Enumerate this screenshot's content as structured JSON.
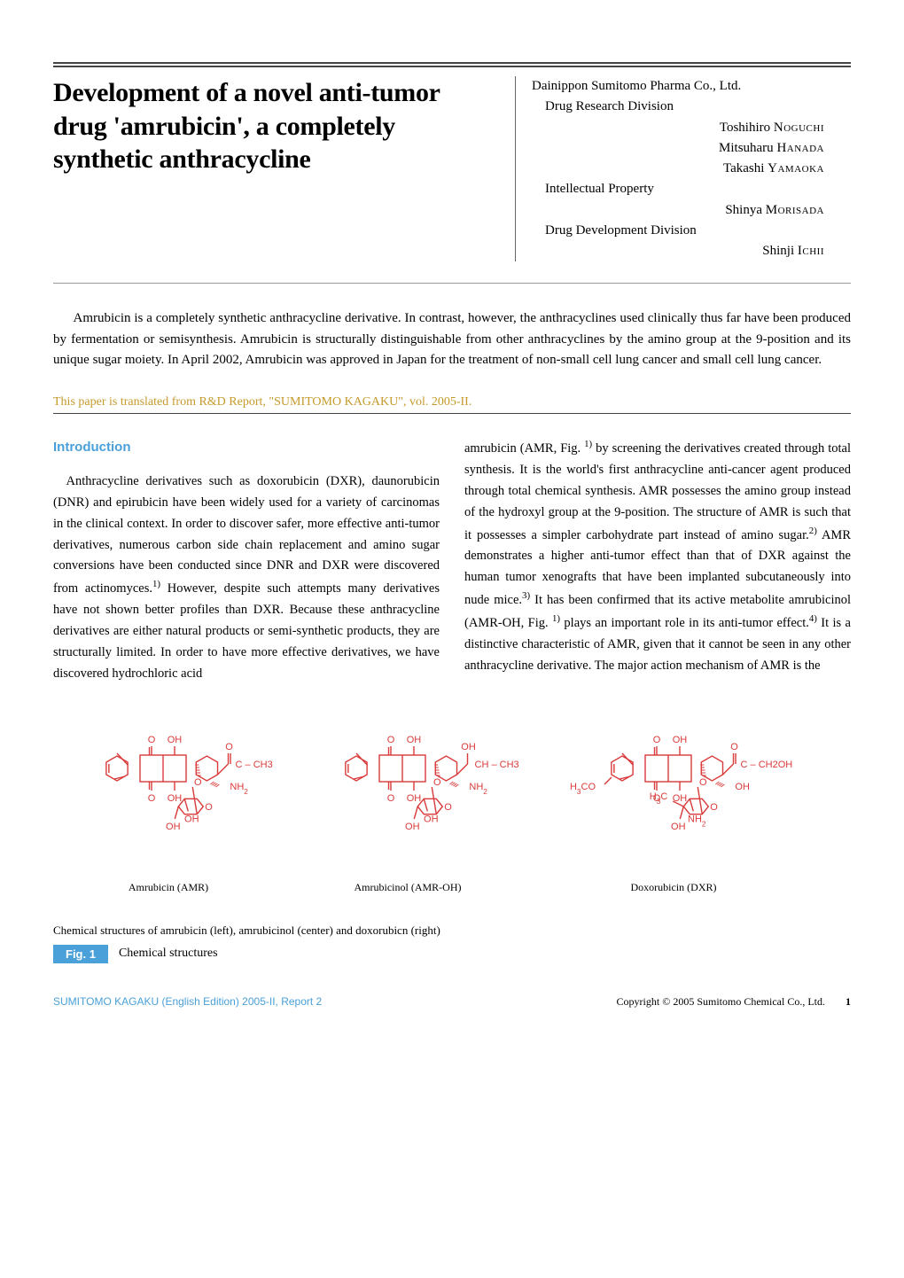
{
  "header": {
    "title": "Development of a novel anti-tumor drug 'amrubicin', a completely synthetic anthracycline",
    "organization": "Dainippon Sumitomo Pharma Co., Ltd.",
    "affiliations": [
      {
        "dept": "Drug Research Division",
        "authors": [
          {
            "given": "Toshihiro",
            "surname": "Noguchi"
          },
          {
            "given": "Mitsuharu",
            "surname": "Hanada"
          },
          {
            "given": "Takashi",
            "surname": "Yamaoka"
          }
        ]
      },
      {
        "dept": "Intellectual Property",
        "authors": [
          {
            "given": "Shinya",
            "surname": "Morisada"
          }
        ]
      },
      {
        "dept": "Drug Development Division",
        "authors": [
          {
            "given": "Shinji",
            "surname": "Ichii"
          }
        ]
      }
    ]
  },
  "abstract": "Amrubicin is a completely synthetic anthracycline derivative.  In contrast, however, the anthracyclines used clinically thus far have been produced by fermentation or semisynthesis. Amrubicin is structurally distinguishable from other anthracyclines by the amino group at the 9-position and its unique sugar moiety.  In April 2002, Amrubicin was approved in Japan for the treatment of non-small cell lung cancer and small cell lung cancer.",
  "translated_note": "This paper is translated from R&D Report, \"SUMITOMO KAGAKU\", vol. 2005-II.",
  "sections": {
    "introduction_heading": "Introduction",
    "col1_para": "Anthracycline derivatives such as doxorubicin (DXR), daunorubicin (DNR) and epirubicin have been widely used for a variety of carcinomas in the clinical context. In order to discover safer, more effective anti-tumor derivatives, numerous carbon side chain replacement and amino sugar conversions have been conducted since DNR and DXR were discovered from actinomyces.1) However, despite such attempts many derivatives have not shown better profiles than DXR. Because these anthracycline derivatives are either natural products or semi-synthetic products, they are structurally limited. In order to have more effective derivatives, we have discovered hydrochloric acid",
    "col2_para": "amrubicin (AMR, Fig. 1) by screening the derivatives created through total synthesis. It is the world's first anthracycline anti-cancer agent produced through total chemical synthesis. AMR possesses the amino group instead of the hydroxyl group at the 9-position. The structure of AMR is such that it possesses a simpler carbohydrate part instead of amino sugar.2) AMR demonstrates a higher anti-tumor effect than that of DXR against the human tumor xenografts that have been implanted subcutaneously into nude mice.3) It has been confirmed that its active metabolite amrubicinol (AMR-OH, Fig. 1) plays an important role in its anti-tumor effect.4) It is a distinctive characteristic of AMR, given that it cannot be seen in any other anthracycline derivative. The major action mechanism of AMR is the"
  },
  "figure1": {
    "label": "Fig. 1",
    "caption": "Chemical structures",
    "subcaption": "Chemical structures of amrubicin (left), amrubicinol (center) and doxorubicn (right)",
    "molecules": [
      {
        "name": "Amrubicin (AMR)",
        "side_chain": [
          "O",
          "C",
          "CH3"
        ],
        "pos9": "NH2",
        "ring_methoxy": null,
        "sugar": {
          "c_methyl": null,
          "left": "OH",
          "bottom": "OH"
        }
      },
      {
        "name": "Amrubicinol (AMR-OH)",
        "side_chain": [
          "OH",
          "CH",
          "CH3"
        ],
        "pos9": "NH2",
        "ring_methoxy": null,
        "sugar": {
          "c_methyl": null,
          "left": "OH",
          "bottom": "OH"
        }
      },
      {
        "name": "Doxorubicin (DXR)",
        "side_chain": [
          "O",
          "C",
          "CH2OH"
        ],
        "pos9": "OH",
        "ring_methoxy": "H3CO",
        "sugar": {
          "c_methyl": "H3C",
          "left": "OH",
          "bottom": "NH2"
        }
      }
    ],
    "colors": {
      "bond": "#d93a3a",
      "text": "#d93a3a",
      "font_size": 11
    }
  },
  "footer": {
    "left": "SUMITOMO KAGAKU (English Edition) 2005-II, Report 2",
    "right": "Copyright © 2005 Sumitomo Chemical Co., Ltd.",
    "page": "1"
  },
  "colors": {
    "accent_blue": "#4aa0d8",
    "gold": "#c59a2b",
    "ink": "#000000",
    "rule": "#444444"
  }
}
